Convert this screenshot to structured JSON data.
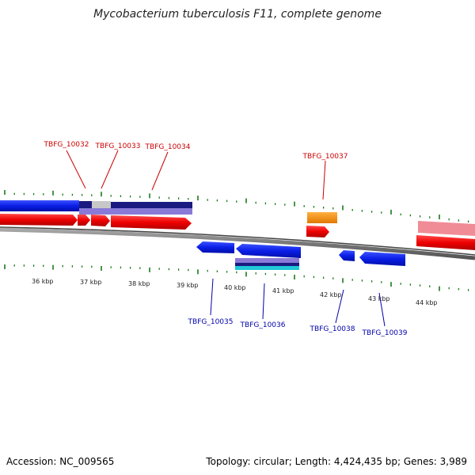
{
  "title": "Mycobacterium tuberculosis F11, complete genome",
  "footer": {
    "accession": "Accession: NC_009565",
    "topology": "Topology: circular; Length: 4,424,435 bp; Genes: 3,989"
  },
  "scale_labels": [
    "36 kbp",
    "37 kbp",
    "38 kbp",
    "39 kbp",
    "40 kbp",
    "41 kbp",
    "42 kbp",
    "43 kbp",
    "44 kbp"
  ],
  "gene_labels_forward": [
    "TBFG_10032",
    "TBFG_10033",
    "TBFG_10034",
    "TBFG_10037"
  ],
  "gene_labels_reverse": [
    "TBFG_10035",
    "TBFG_10036",
    "TBFG_10038",
    "TBFG_10039"
  ],
  "colors": {
    "forward_label": "#cc0000",
    "reverse_label": "#0000aa",
    "tick": "#1a7a1a",
    "backbone": "#888888",
    "blue_gene": "#0a1ee6",
    "red_gene": "#ee0000",
    "orange_gene": "#ff8c00",
    "navy_band": "#1a1a80",
    "lavender_band": "#8a7ad8",
    "pink_band": "#f08c96",
    "cyan_band": "#20c8d8"
  }
}
